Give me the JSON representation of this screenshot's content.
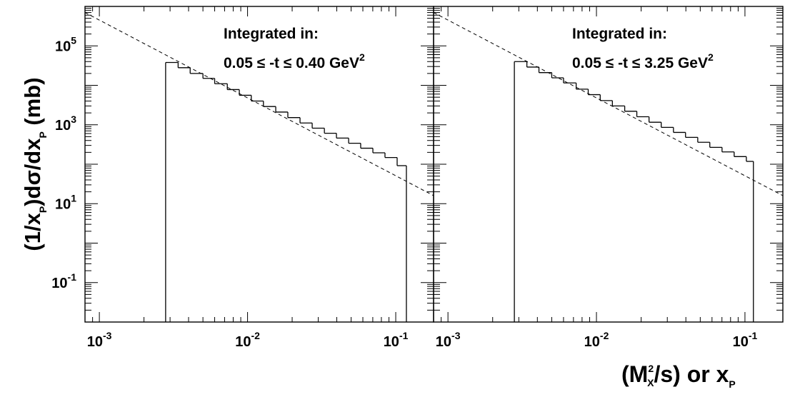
{
  "chart_data": {
    "type": "line",
    "title": "",
    "y_axis": {
      "label_parts": [
        "(1/x",
        "P",
        ")d",
        "σ",
        "/dx",
        "P",
        " (mb)"
      ],
      "scale": "log",
      "ylim": [
        0.01,
        1000000
      ],
      "ticks": [
        {
          "base": "10",
          "exp": "5",
          "value": 100000
        },
        {
          "base": "10",
          "exp": "3",
          "value": 1000
        },
        {
          "base": "10",
          "exp": "1",
          "value": 10
        },
        {
          "base": "10",
          "exp": "-1",
          "value": 0.1
        }
      ]
    },
    "x_axis": {
      "label_parts": [
        "(M",
        "2",
        "X",
        "/s) or x",
        "P"
      ],
      "scale": "log",
      "xlim": [
        0.0008,
        0.18
      ],
      "ticks": [
        {
          "base": "10",
          "exp": "-3",
          "value": 0.001
        },
        {
          "base": "10",
          "exp": "-2",
          "value": 0.01
        },
        {
          "base": "10",
          "exp": "-1",
          "value": 0.1
        }
      ]
    },
    "panels": [
      {
        "annotation_line1": "Integrated in:",
        "annotation_line2": "0.05 ≤ -t ≤ 0.40 GeV",
        "annotation_sup": "2",
        "histogram": {
          "bin_edges": [
            0.0028,
            0.0034,
            0.0041,
            0.005,
            0.006,
            0.0073,
            0.0088,
            0.0106,
            0.0128,
            0.0155,
            0.0187,
            0.0226,
            0.0273,
            0.033,
            0.0398,
            0.0481,
            0.058,
            0.0701,
            0.0846,
            0.1022,
            0.118
          ],
          "values": [
            38000,
            28000,
            20000,
            15000,
            11000,
            7800,
            5600,
            4000,
            2900,
            2100,
            1520,
            1110,
            820,
            610,
            460,
            340,
            255,
            195,
            148,
            92
          ]
        },
        "fit_line": {
          "x": [
            0.0008,
            0.18
          ],
          "y": [
            700000,
            16
          ]
        }
      },
      {
        "annotation_line1": "Integrated in:",
        "annotation_line2": "0.05 ≤ -t ≤ 3.25 GeV",
        "annotation_sup": "2",
        "histogram": {
          "bin_edges": [
            0.0028,
            0.0034,
            0.0041,
            0.005,
            0.006,
            0.0073,
            0.0088,
            0.0106,
            0.0128,
            0.0155,
            0.0187,
            0.0226,
            0.0273,
            0.033,
            0.0398,
            0.0481,
            0.058,
            0.0701,
            0.0846,
            0.1022,
            0.114
          ],
          "values": [
            40000,
            29000,
            21000,
            15500,
            11500,
            8000,
            5800,
            4100,
            3000,
            2200,
            1600,
            1160,
            860,
            640,
            480,
            360,
            268,
            205,
            156,
            118
          ]
        },
        "fit_line": {
          "x": [
            0.0008,
            0.18
          ],
          "y": [
            700000,
            16
          ]
        }
      }
    ],
    "series_style": {
      "histogram": "solid",
      "fit_line": "dashed"
    },
    "grid": false,
    "legend": "none"
  }
}
